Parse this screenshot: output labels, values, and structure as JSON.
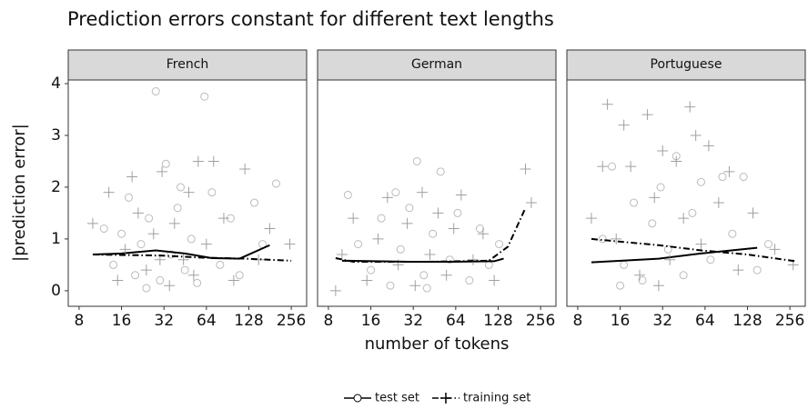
{
  "title": "Prediction errors constant for different text lengths",
  "xlabel": "number of tokens",
  "ylabel": "|prediction error|",
  "chart_data": [
    {
      "type": "scatter",
      "title": "French",
      "log_x": true,
      "log_base": 2,
      "xlim": [
        6.7,
        329
      ],
      "xticks": [
        8,
        16,
        32,
        64,
        128,
        256
      ],
      "ylim": [
        -0.3,
        4.07
      ],
      "yticks": [
        0,
        1,
        2,
        3,
        4
      ],
      "series": [
        {
          "name": "test set",
          "color": "#aaaaaa",
          "marker": "circle",
          "line": "solid",
          "x": [
            12,
            14,
            16,
            18,
            20,
            22,
            25,
            28,
            30,
            33,
            36,
            40,
            45,
            50,
            55,
            62,
            70,
            80,
            95,
            110,
            140,
            200,
            160,
            24,
            42
          ],
          "values": [
            1.2,
            0.5,
            1.1,
            1.8,
            0.3,
            0.9,
            1.4,
            3.85,
            0.2,
            2.45,
            0.7,
            1.6,
            0.4,
            1.0,
            0.15,
            3.75,
            1.9,
            0.5,
            1.4,
            0.3,
            1.7,
            2.07,
            0.9,
            0.05,
            2.0
          ],
          "trend_x": [
            10,
            16,
            28,
            45,
            70,
            110,
            180
          ],
          "trend_values": [
            0.7,
            0.72,
            0.78,
            0.72,
            0.63,
            0.62,
            0.88
          ]
        },
        {
          "name": "training set",
          "color": "#888888",
          "marker": "plus",
          "line": "dashdot",
          "x": [
            10,
            13,
            15,
            17,
            19,
            21,
            24,
            27,
            31,
            35,
            38,
            44,
            48,
            56,
            64,
            72,
            85,
            100,
            120,
            150,
            180,
            250,
            30,
            52
          ],
          "values": [
            1.3,
            1.9,
            0.2,
            0.8,
            2.2,
            1.5,
            0.4,
            1.1,
            2.3,
            0.1,
            1.3,
            0.6,
            1.9,
            2.5,
            0.9,
            2.5,
            1.4,
            0.2,
            2.35,
            0.6,
            1.2,
            0.9,
            0.6,
            0.3
          ],
          "trend_x": [
            10,
            30,
            60,
            120,
            256
          ],
          "trend_values": [
            0.7,
            0.68,
            0.64,
            0.62,
            0.58
          ]
        }
      ]
    },
    {
      "type": "scatter",
      "title": "German",
      "log_x": true,
      "log_base": 2,
      "xlim": [
        6.7,
        329
      ],
      "xticks": [
        8,
        16,
        32,
        64,
        128,
        256
      ],
      "ylim": [
        -0.3,
        4.07
      ],
      "yticks": [
        0,
        1,
        2,
        3,
        4
      ],
      "series": [
        {
          "color": "#aaaaaa",
          "marker": "circle",
          "line": "solid",
          "x": [
            11,
            13,
            16,
            19,
            22,
            26,
            30,
            34,
            38,
            44,
            50,
            58,
            66,
            80,
            95,
            110,
            130,
            24,
            40
          ],
          "values": [
            1.85,
            0.9,
            0.4,
            1.4,
            0.1,
            0.8,
            1.6,
            2.5,
            0.3,
            1.1,
            2.3,
            0.6,
            1.5,
            0.2,
            1.2,
            0.5,
            0.9,
            1.9,
            0.05
          ],
          "trend_x": [
            10,
            30,
            60,
            120,
            140
          ],
          "trend_values": [
            0.58,
            0.56,
            0.56,
            0.57,
            0.62
          ]
        },
        {
          "color": "#888888",
          "marker": "plus",
          "line": "dashdot",
          "x": [
            10,
            12,
            15,
            18,
            21,
            25,
            29,
            33,
            37,
            42,
            48,
            55,
            62,
            70,
            85,
            100,
            120,
            200,
            220,
            9
          ],
          "values": [
            0.7,
            1.4,
            0.2,
            1.0,
            1.8,
            0.5,
            1.3,
            0.1,
            1.9,
            0.7,
            1.5,
            0.3,
            1.2,
            1.85,
            0.6,
            1.1,
            0.2,
            2.35,
            1.7,
            0.0
          ],
          "trend_x": [
            9,
            12,
            40,
            110,
            150,
            200
          ],
          "trend_values": [
            0.63,
            0.56,
            0.56,
            0.58,
            0.85,
            1.6
          ]
        }
      ]
    },
    {
      "type": "scatter",
      "title": "Portuguese",
      "log_x": true,
      "log_base": 2,
      "xlim": [
        6.7,
        329
      ],
      "xticks": [
        8,
        16,
        32,
        64,
        128,
        256
      ],
      "ylim": [
        -0.3,
        4.07
      ],
      "yticks": [
        0,
        1,
        2,
        3,
        4
      ],
      "series": [
        {
          "color": "#aaaaaa",
          "marker": "circle",
          "line": "solid",
          "x": [
            12,
            14,
            17,
            20,
            23,
            27,
            31,
            35,
            40,
            45,
            52,
            60,
            70,
            85,
            100,
            120,
            150,
            180,
            16
          ],
          "values": [
            1.0,
            2.4,
            0.5,
            1.7,
            0.2,
            1.3,
            2.0,
            0.8,
            2.6,
            0.3,
            1.5,
            2.1,
            0.6,
            2.2,
            1.1,
            2.2,
            0.4,
            0.9,
            0.1
          ],
          "trend_x": [
            10,
            30,
            60,
            150
          ],
          "trend_values": [
            0.55,
            0.62,
            0.72,
            0.83
          ]
        },
        {
          "color": "#888888",
          "marker": "plus",
          "line": "dashdot",
          "x": [
            10,
            12,
            13,
            15,
            17,
            19,
            22,
            25,
            28,
            32,
            36,
            40,
            45,
            50,
            55,
            60,
            68,
            80,
            95,
            110,
            140,
            200,
            270,
            30
          ],
          "values": [
            1.4,
            2.4,
            3.6,
            1.0,
            3.2,
            2.4,
            0.3,
            3.4,
            1.8,
            2.7,
            0.6,
            2.5,
            1.4,
            3.55,
            3.0,
            0.9,
            2.8,
            1.7,
            2.3,
            0.4,
            1.5,
            0.8,
            0.5,
            0.1
          ],
          "trend_x": [
            10,
            30,
            60,
            128,
            280
          ],
          "trend_values": [
            1.0,
            0.88,
            0.78,
            0.7,
            0.57
          ]
        }
      ]
    }
  ]
}
